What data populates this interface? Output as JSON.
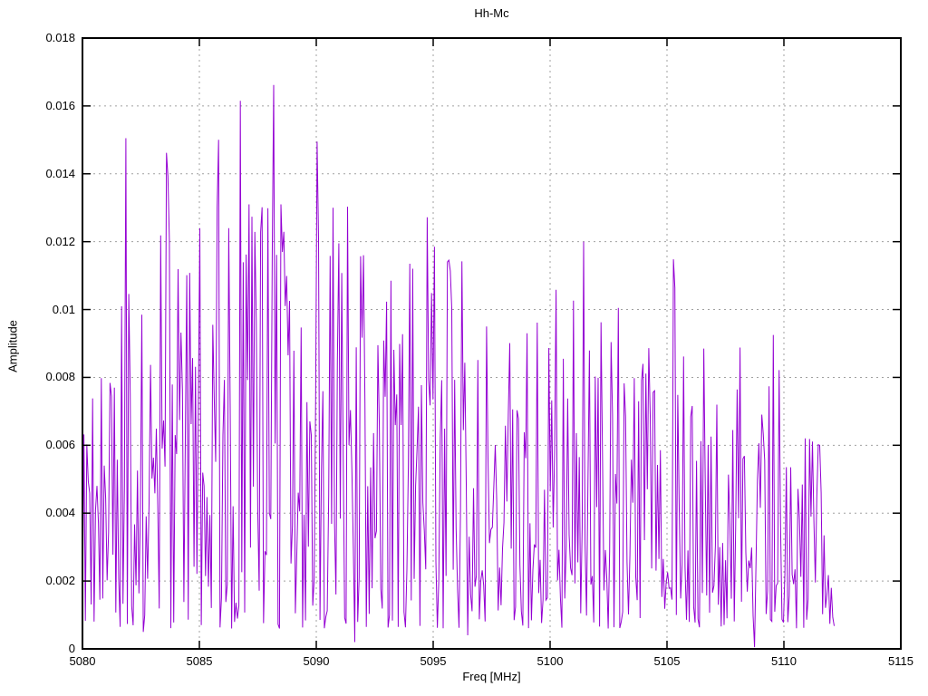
{
  "colors": {
    "line": "#9400D3",
    "grid": "#A0A0A0",
    "border": "#000000",
    "background": "#FFFFFF",
    "text": "#000000"
  },
  "chart_data": {
    "type": "line",
    "title": "Hh-Mc",
    "xlabel": "Freq [MHz]",
    "ylabel": "Amplitude",
    "xlim": [
      5080,
      5115
    ],
    "ylim": [
      0,
      0.018
    ],
    "grid": true,
    "legend": false,
    "style": "dense noisy amplitude spectrum drawn as thin vertical purple strokes",
    "x_ticks": [
      5080,
      5085,
      5090,
      5095,
      5100,
      5105,
      5110,
      5115
    ],
    "x_tick_labels": [
      "5080",
      "5085",
      "5090",
      "5095",
      "5100",
      "5105",
      "5110",
      "5115"
    ],
    "y_ticks": [
      0,
      0.002,
      0.004,
      0.006,
      0.008,
      0.01,
      0.012,
      0.014,
      0.016,
      0.018
    ],
    "y_tick_labels": [
      "0",
      "0.002",
      "0.004",
      "0.006",
      "0.008",
      "0.01",
      "0.012",
      "0.014",
      "0.016",
      "0.018"
    ],
    "data_x_start": 5080,
    "data_x_end": 5112.15,
    "n_points": 520,
    "noise": {
      "seed": 9,
      "exponent": 1.8,
      "floor": 0.0006
    },
    "envelope_max": [
      [
        5080.0,
        0.0082
      ],
      [
        5080.6,
        0.0086
      ],
      [
        5081.4,
        0.0097
      ],
      [
        5081.9,
        0.0151
      ],
      [
        5082.4,
        0.01
      ],
      [
        5083.0,
        0.0126
      ],
      [
        5083.6,
        0.0147
      ],
      [
        5084.2,
        0.011
      ],
      [
        5084.8,
        0.013
      ],
      [
        5085.4,
        0.0125
      ],
      [
        5085.9,
        0.0151
      ],
      [
        5086.4,
        0.015
      ],
      [
        5086.8,
        0.0162
      ],
      [
        5087.4,
        0.0132
      ],
      [
        5088.2,
        0.0167
      ],
      [
        5088.8,
        0.0132
      ],
      [
        5089.4,
        0.0114
      ],
      [
        5090.0,
        0.015
      ],
      [
        5090.6,
        0.013
      ],
      [
        5091.3,
        0.0131
      ],
      [
        5092.0,
        0.0117
      ],
      [
        5092.7,
        0.01
      ],
      [
        5093.5,
        0.011
      ],
      [
        5094.2,
        0.0114
      ],
      [
        5094.8,
        0.0128
      ],
      [
        5095.4,
        0.0118
      ],
      [
        5096.0,
        0.0115
      ],
      [
        5096.7,
        0.0095
      ],
      [
        5097.5,
        0.0096
      ],
      [
        5098.3,
        0.0093
      ],
      [
        5099.0,
        0.0086
      ],
      [
        5099.8,
        0.0105
      ],
      [
        5100.5,
        0.0088
      ],
      [
        5101.4,
        0.0121
      ],
      [
        5102.2,
        0.0096
      ],
      [
        5103.0,
        0.0101
      ],
      [
        5103.8,
        0.0083
      ],
      [
        5104.6,
        0.0096
      ],
      [
        5105.3,
        0.0116
      ],
      [
        5106.0,
        0.0082
      ],
      [
        5106.8,
        0.009
      ],
      [
        5107.6,
        0.0077
      ],
      [
        5108.4,
        0.0076
      ],
      [
        5109.0,
        0.008
      ],
      [
        5109.6,
        0.0094
      ],
      [
        5110.2,
        0.0078
      ],
      [
        5110.8,
        0.0063
      ],
      [
        5111.4,
        0.0063
      ],
      [
        5112.1,
        0.004
      ]
    ],
    "peaks": [
      [
        5081.85,
        0.01505
      ],
      [
        5083.6,
        0.01462
      ],
      [
        5085.0,
        0.0124
      ],
      [
        5085.85,
        0.015
      ],
      [
        5086.75,
        0.01615
      ],
      [
        5087.1,
        0.0131
      ],
      [
        5088.2,
        0.01662
      ],
      [
        5088.5,
        0.0131
      ],
      [
        5090.05,
        0.01495
      ],
      [
        5090.7,
        0.013
      ],
      [
        5091.35,
        0.01303
      ],
      [
        5092.0,
        0.0116
      ],
      [
        5093.2,
        0.01085
      ],
      [
        5094.0,
        0.01135
      ],
      [
        5094.75,
        0.01272
      ],
      [
        5095.05,
        0.01185
      ],
      [
        5095.6,
        0.0114
      ],
      [
        5096.2,
        0.01142
      ],
      [
        5097.3,
        0.0095
      ],
      [
        5099.0,
        0.0093
      ],
      [
        5100.25,
        0.01058
      ],
      [
        5101.45,
        0.012
      ],
      [
        5102.9,
        0.01005
      ],
      [
        5104.0,
        0.0084
      ],
      [
        5105.25,
        0.01148
      ],
      [
        5106.6,
        0.00885
      ],
      [
        5108.1,
        0.00888
      ],
      [
        5109.55,
        0.00925
      ],
      [
        5110.9,
        0.0062
      ],
      [
        5111.5,
        0.006
      ]
    ],
    "lows": [
      [
        5082.6,
        0.0005
      ],
      [
        5091.65,
        0.0002
      ],
      [
        5096.5,
        0.0004
      ],
      [
        5102.5,
        0.0006
      ],
      [
        5108.72,
        5e-05
      ]
    ]
  }
}
